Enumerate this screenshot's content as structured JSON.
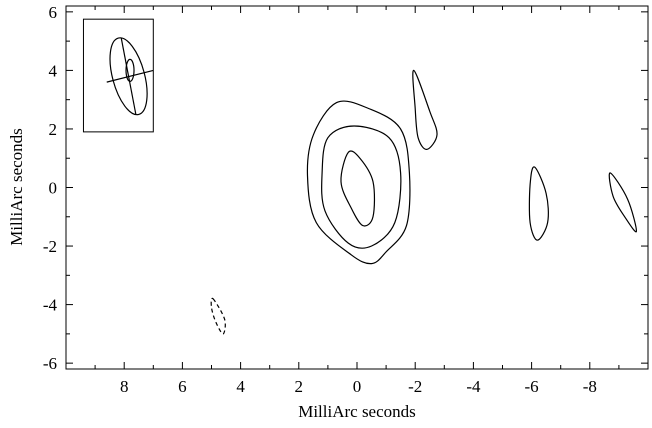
{
  "chart_data": {
    "type": "contour",
    "xlabel": "MilliArc seconds",
    "ylabel": "MilliArc seconds",
    "xlim": [
      10,
      -10
    ],
    "ylim": [
      -6.2,
      6.2
    ],
    "x_ticks": [
      8,
      6,
      4,
      2,
      0,
      -2,
      -4,
      -6,
      -8
    ],
    "x_tick_labels": [
      "8",
      "6",
      "4",
      "2",
      "0",
      "-2",
      "-4",
      "-6",
      "-8"
    ],
    "y_ticks": [
      6,
      4,
      2,
      0,
      -2,
      -4,
      -6
    ],
    "y_tick_labels": [
      "6",
      "4",
      "2",
      "0",
      "-2",
      "-4",
      "-6"
    ],
    "contours": [
      {
        "name": "core-outer",
        "sign": "positive",
        "points": [
          [
            1.7,
            0.4
          ],
          [
            1.5,
            1.8
          ],
          [
            0.7,
            2.9
          ],
          [
            -0.4,
            2.7
          ],
          [
            -1.5,
            2.0
          ],
          [
            -1.8,
            0.5
          ],
          [
            -1.7,
            -1.3
          ],
          [
            -1.0,
            -2.2
          ],
          [
            -0.5,
            -2.6
          ],
          [
            0.2,
            -2.3
          ],
          [
            1.4,
            -1.2
          ]
        ]
      },
      {
        "name": "core-middle",
        "sign": "positive",
        "points": [
          [
            1.2,
            0.5
          ],
          [
            1.0,
            1.7
          ],
          [
            0.1,
            2.1
          ],
          [
            -1.1,
            1.7
          ],
          [
            -1.5,
            0.5
          ],
          [
            -1.3,
            -1.2
          ],
          [
            -0.5,
            -2.0
          ],
          [
            0.3,
            -1.9
          ],
          [
            1.1,
            -0.8
          ]
        ]
      },
      {
        "name": "core-inner",
        "sign": "positive",
        "points": [
          [
            0.55,
            0.2
          ],
          [
            0.3,
            1.2
          ],
          [
            -0.1,
            1.0
          ],
          [
            -0.55,
            0.2
          ],
          [
            -0.55,
            -1.0
          ],
          [
            -0.2,
            -1.3
          ],
          [
            0.2,
            -0.7
          ]
        ]
      },
      {
        "name": "jet-knot-1",
        "sign": "positive",
        "points": [
          [
            -1.95,
            4.0
          ],
          [
            -2.5,
            2.6
          ],
          [
            -2.75,
            1.8
          ],
          [
            -2.4,
            1.3
          ],
          [
            -2.1,
            1.7
          ],
          [
            -2.0,
            2.7
          ]
        ]
      },
      {
        "name": "jet-knot-2",
        "sign": "positive",
        "points": [
          [
            -6.1,
            0.7
          ],
          [
            -6.5,
            -0.2
          ],
          [
            -6.55,
            -1.2
          ],
          [
            -6.2,
            -1.8
          ],
          [
            -5.95,
            -1.2
          ],
          [
            -5.95,
            0.1
          ]
        ]
      },
      {
        "name": "jet-knot-3",
        "sign": "positive",
        "points": [
          [
            -8.7,
            0.5
          ],
          [
            -9.3,
            -0.4
          ],
          [
            -9.6,
            -1.5
          ],
          [
            -9.2,
            -1.0
          ],
          [
            -8.8,
            -0.3
          ]
        ]
      },
      {
        "name": "negative-feature",
        "sign": "negative",
        "points": [
          [
            4.95,
            -3.8
          ],
          [
            4.55,
            -4.5
          ],
          [
            4.6,
            -5.0
          ],
          [
            4.85,
            -4.6
          ],
          [
            5.0,
            -4.1
          ]
        ]
      }
    ],
    "beam": {
      "major_axis_x": [
        8.1,
        7.6
      ],
      "major_axis_y": [
        5.1,
        2.5
      ],
      "minor_axis_x": [
        8.6,
        7.0
      ],
      "minor_axis_y": [
        3.6,
        4.0
      ],
      "center": [
        7.85,
        3.8
      ],
      "semi_major": 1.35,
      "semi_minor": 0.55,
      "position_angle_deg": 15
    },
    "beam_box": {
      "x": [
        9.4,
        7.0
      ],
      "y": [
        5.75,
        1.9
      ]
    },
    "grid": false,
    "legend": "none"
  }
}
